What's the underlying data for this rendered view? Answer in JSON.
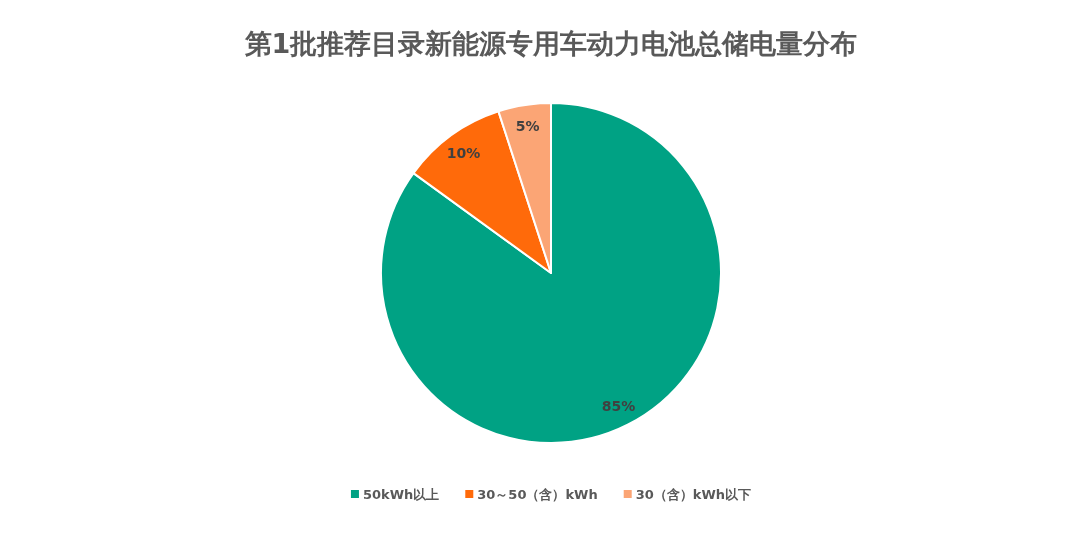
{
  "chart_data": {
    "type": "pie",
    "title": "第1批推荐目录新能源专用车动力电池总储电量分布",
    "categories": [
      "50kWh以上",
      "30～50（含）kWh",
      "30（含）kWh以下"
    ],
    "values": [
      85,
      10,
      5
    ],
    "colors": [
      "#00a284",
      "#ff6a0a",
      "#fba575"
    ],
    "value_labels": [
      "85%",
      "10%",
      "5%"
    ],
    "legend": "bottom"
  }
}
